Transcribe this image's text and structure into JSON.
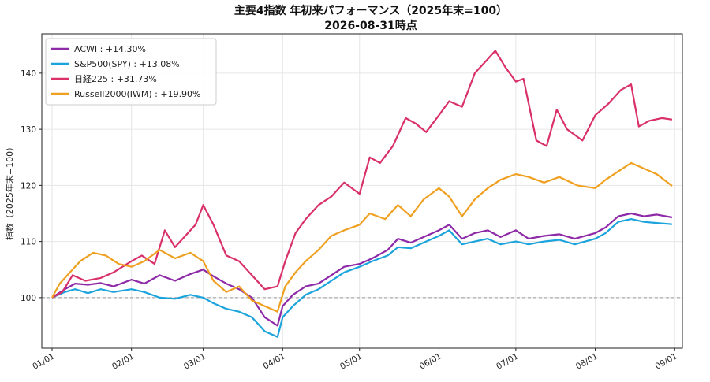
{
  "chart_data": {
    "type": "line",
    "title": "主要4指数 年初来パフォーマンス（2025年末=100）",
    "subtitle": "2026-08-31時点",
    "xlabel": "",
    "ylabel": "指数（2025年末=100）",
    "ylim": [
      91,
      147
    ],
    "yticks": [
      100,
      110,
      120,
      130,
      140
    ],
    "xlim": [
      "2025-12-28",
      "2026-09-04"
    ],
    "xticks": [
      {
        "date": "2026-01-01",
        "label": "01/01"
      },
      {
        "date": "2026-02-01",
        "label": "02/01"
      },
      {
        "date": "2026-03-01",
        "label": "03/01"
      },
      {
        "date": "2026-04-01",
        "label": "04/01"
      },
      {
        "date": "2026-05-01",
        "label": "05/01"
      },
      {
        "date": "2026-06-01",
        "label": "06/01"
      },
      {
        "date": "2026-07-01",
        "label": "07/01"
      },
      {
        "date": "2026-08-01",
        "label": "08/01"
      },
      {
        "date": "2026-09-01",
        "label": "09/01"
      }
    ],
    "reference_line": 100,
    "grid": true,
    "legend_position": "top-left",
    "series": [
      {
        "name": "ACWI : +14.30%",
        "color": "#8e2aa8",
        "points": [
          [
            "2026-01-01",
            100
          ],
          [
            "2026-01-06",
            101.5
          ],
          [
            "2026-01-10",
            102.5
          ],
          [
            "2026-01-15",
            102.3
          ],
          [
            "2026-01-20",
            102.6
          ],
          [
            "2026-01-25",
            102.0
          ],
          [
            "2026-02-01",
            103.2
          ],
          [
            "2026-02-06",
            102.5
          ],
          [
            "2026-02-12",
            104.0
          ],
          [
            "2026-02-18",
            103.0
          ],
          [
            "2026-02-24",
            104.2
          ],
          [
            "2026-03-01",
            105.0
          ],
          [
            "2026-03-05",
            103.8
          ],
          [
            "2026-03-10",
            102.5
          ],
          [
            "2026-03-15",
            101.5
          ],
          [
            "2026-03-20",
            100.0
          ],
          [
            "2026-03-25",
            96.5
          ],
          [
            "2026-03-30",
            95.0
          ],
          [
            "2026-04-01",
            98.5
          ],
          [
            "2026-04-05",
            100.5
          ],
          [
            "2026-04-10",
            102.0
          ],
          [
            "2026-04-15",
            102.5
          ],
          [
            "2026-04-20",
            104.0
          ],
          [
            "2026-04-25",
            105.5
          ],
          [
            "2026-05-01",
            106.0
          ],
          [
            "2026-05-06",
            107.0
          ],
          [
            "2026-05-12",
            108.5
          ],
          [
            "2026-05-16",
            110.5
          ],
          [
            "2026-05-21",
            109.8
          ],
          [
            "2026-05-27",
            111.0
          ],
          [
            "2026-06-01",
            112.0
          ],
          [
            "2026-06-05",
            113.0
          ],
          [
            "2026-06-10",
            110.5
          ],
          [
            "2026-06-15",
            111.5
          ],
          [
            "2026-06-20",
            112.0
          ],
          [
            "2026-06-25",
            110.8
          ],
          [
            "2026-07-01",
            112.0
          ],
          [
            "2026-07-06",
            110.5
          ],
          [
            "2026-07-12",
            111.0
          ],
          [
            "2026-07-18",
            111.3
          ],
          [
            "2026-07-24",
            110.5
          ],
          [
            "2026-08-01",
            111.5
          ],
          [
            "2026-08-05",
            112.5
          ],
          [
            "2026-08-10",
            114.5
          ],
          [
            "2026-08-15",
            115.0
          ],
          [
            "2026-08-20",
            114.5
          ],
          [
            "2026-08-25",
            114.8
          ],
          [
            "2026-08-31",
            114.3
          ]
        ]
      },
      {
        "name": "S&P500(SPY) : +13.08%",
        "color": "#1ba3dc",
        "points": [
          [
            "2026-01-01",
            100
          ],
          [
            "2026-01-06",
            101.0
          ],
          [
            "2026-01-10",
            101.5
          ],
          [
            "2026-01-15",
            100.8
          ],
          [
            "2026-01-20",
            101.5
          ],
          [
            "2026-01-25",
            101.0
          ],
          [
            "2026-02-01",
            101.5
          ],
          [
            "2026-02-06",
            101.0
          ],
          [
            "2026-02-12",
            100.0
          ],
          [
            "2026-02-18",
            99.8
          ],
          [
            "2026-02-24",
            100.5
          ],
          [
            "2026-03-01",
            100.0
          ],
          [
            "2026-03-05",
            99.0
          ],
          [
            "2026-03-10",
            98.0
          ],
          [
            "2026-03-15",
            97.5
          ],
          [
            "2026-03-20",
            96.5
          ],
          [
            "2026-03-25",
            94.0
          ],
          [
            "2026-03-30",
            93.0
          ],
          [
            "2026-04-01",
            96.5
          ],
          [
            "2026-04-05",
            98.5
          ],
          [
            "2026-04-10",
            100.5
          ],
          [
            "2026-04-15",
            101.5
          ],
          [
            "2026-04-20",
            103.0
          ],
          [
            "2026-04-25",
            104.5
          ],
          [
            "2026-05-01",
            105.5
          ],
          [
            "2026-05-06",
            106.5
          ],
          [
            "2026-05-12",
            107.5
          ],
          [
            "2026-05-16",
            109.0
          ],
          [
            "2026-05-21",
            108.8
          ],
          [
            "2026-05-27",
            110.0
          ],
          [
            "2026-06-01",
            111.0
          ],
          [
            "2026-06-05",
            112.0
          ],
          [
            "2026-06-10",
            109.5
          ],
          [
            "2026-06-15",
            110.0
          ],
          [
            "2026-06-20",
            110.5
          ],
          [
            "2026-06-25",
            109.5
          ],
          [
            "2026-07-01",
            110.0
          ],
          [
            "2026-07-06",
            109.5
          ],
          [
            "2026-07-12",
            110.0
          ],
          [
            "2026-07-18",
            110.3
          ],
          [
            "2026-07-24",
            109.5
          ],
          [
            "2026-08-01",
            110.5
          ],
          [
            "2026-08-05",
            111.5
          ],
          [
            "2026-08-10",
            113.5
          ],
          [
            "2026-08-15",
            114.0
          ],
          [
            "2026-08-20",
            113.5
          ],
          [
            "2026-08-25",
            113.3
          ],
          [
            "2026-08-31",
            113.08
          ]
        ]
      },
      {
        "name": "日経225 : +31.73%",
        "color": "#d9306b",
        "points": [
          [
            "2026-01-01",
            100
          ],
          [
            "2026-01-05",
            101.0
          ],
          [
            "2026-01-09",
            104.0
          ],
          [
            "2026-01-14",
            103.0
          ],
          [
            "2026-01-20",
            103.5
          ],
          [
            "2026-01-25",
            104.5
          ],
          [
            "2026-02-01",
            106.5
          ],
          [
            "2026-02-05",
            107.5
          ],
          [
            "2026-02-10",
            106.0
          ],
          [
            "2026-02-14",
            112.0
          ],
          [
            "2026-02-18",
            109.0
          ],
          [
            "2026-02-22",
            111.0
          ],
          [
            "2026-02-26",
            113.0
          ],
          [
            "2026-03-01",
            116.5
          ],
          [
            "2026-03-05",
            113.0
          ],
          [
            "2026-03-10",
            107.5
          ],
          [
            "2026-03-15",
            106.5
          ],
          [
            "2026-03-20",
            104.0
          ],
          [
            "2026-03-25",
            101.5
          ],
          [
            "2026-03-30",
            102.0
          ],
          [
            "2026-04-02",
            106.5
          ],
          [
            "2026-04-06",
            111.5
          ],
          [
            "2026-04-10",
            114.0
          ],
          [
            "2026-04-15",
            116.5
          ],
          [
            "2026-04-20",
            118.0
          ],
          [
            "2026-04-25",
            120.5
          ],
          [
            "2026-05-01",
            118.5
          ],
          [
            "2026-05-05",
            125.0
          ],
          [
            "2026-05-09",
            124.0
          ],
          [
            "2026-05-14",
            127.0
          ],
          [
            "2026-05-19",
            132.0
          ],
          [
            "2026-05-23",
            131.0
          ],
          [
            "2026-05-27",
            129.5
          ],
          [
            "2026-06-01",
            132.5
          ],
          [
            "2026-06-05",
            135.0
          ],
          [
            "2026-06-10",
            134.0
          ],
          [
            "2026-06-15",
            140.0
          ],
          [
            "2026-06-20",
            142.5
          ],
          [
            "2026-06-23",
            144.0
          ],
          [
            "2026-06-27",
            141.0
          ],
          [
            "2026-07-01",
            138.5
          ],
          [
            "2026-07-04",
            139.0
          ],
          [
            "2026-07-09",
            128.0
          ],
          [
            "2026-07-13",
            127.0
          ],
          [
            "2026-07-17",
            133.5
          ],
          [
            "2026-07-21",
            130.0
          ],
          [
            "2026-07-27",
            128.0
          ],
          [
            "2026-08-01",
            132.5
          ],
          [
            "2026-08-06",
            134.5
          ],
          [
            "2026-08-11",
            137.0
          ],
          [
            "2026-08-15",
            138.0
          ],
          [
            "2026-08-18",
            130.5
          ],
          [
            "2026-08-22",
            131.5
          ],
          [
            "2026-08-27",
            132.0
          ],
          [
            "2026-08-31",
            131.73
          ]
        ]
      },
      {
        "name": "Russell2000(IWM) : +19.90%",
        "color": "#f0a020",
        "points": [
          [
            "2026-01-01",
            100
          ],
          [
            "2026-01-04",
            102.5
          ],
          [
            "2026-01-08",
            104.5
          ],
          [
            "2026-01-12",
            106.5
          ],
          [
            "2026-01-17",
            108.0
          ],
          [
            "2026-01-22",
            107.5
          ],
          [
            "2026-01-27",
            106.0
          ],
          [
            "2026-02-01",
            105.5
          ],
          [
            "2026-02-06",
            106.5
          ],
          [
            "2026-02-12",
            108.5
          ],
          [
            "2026-02-18",
            107.0
          ],
          [
            "2026-02-24",
            108.0
          ],
          [
            "2026-03-01",
            106.5
          ],
          [
            "2026-03-05",
            103.0
          ],
          [
            "2026-03-10",
            101.0
          ],
          [
            "2026-03-15",
            102.0
          ],
          [
            "2026-03-20",
            99.5
          ],
          [
            "2026-03-25",
            98.5
          ],
          [
            "2026-03-30",
            97.5
          ],
          [
            "2026-04-02",
            102.0
          ],
          [
            "2026-04-06",
            104.5
          ],
          [
            "2026-04-10",
            106.5
          ],
          [
            "2026-04-15",
            108.5
          ],
          [
            "2026-04-20",
            111.0
          ],
          [
            "2026-04-25",
            112.0
          ],
          [
            "2026-05-01",
            113.0
          ],
          [
            "2026-05-05",
            115.0
          ],
          [
            "2026-05-11",
            114.0
          ],
          [
            "2026-05-16",
            116.5
          ],
          [
            "2026-05-21",
            114.5
          ],
          [
            "2026-05-26",
            117.5
          ],
          [
            "2026-06-01",
            119.5
          ],
          [
            "2026-06-05",
            118.0
          ],
          [
            "2026-06-10",
            114.5
          ],
          [
            "2026-06-15",
            117.5
          ],
          [
            "2026-06-20",
            119.5
          ],
          [
            "2026-06-25",
            121.0
          ],
          [
            "2026-07-01",
            122.0
          ],
          [
            "2026-07-06",
            121.5
          ],
          [
            "2026-07-12",
            120.5
          ],
          [
            "2026-07-18",
            121.5
          ],
          [
            "2026-07-25",
            120.0
          ],
          [
            "2026-08-01",
            119.5
          ],
          [
            "2026-08-05",
            121.0
          ],
          [
            "2026-08-10",
            122.5
          ],
          [
            "2026-08-15",
            124.0
          ],
          [
            "2026-08-20",
            123.0
          ],
          [
            "2026-08-25",
            122.0
          ],
          [
            "2026-08-31",
            119.9
          ]
        ]
      }
    ]
  }
}
